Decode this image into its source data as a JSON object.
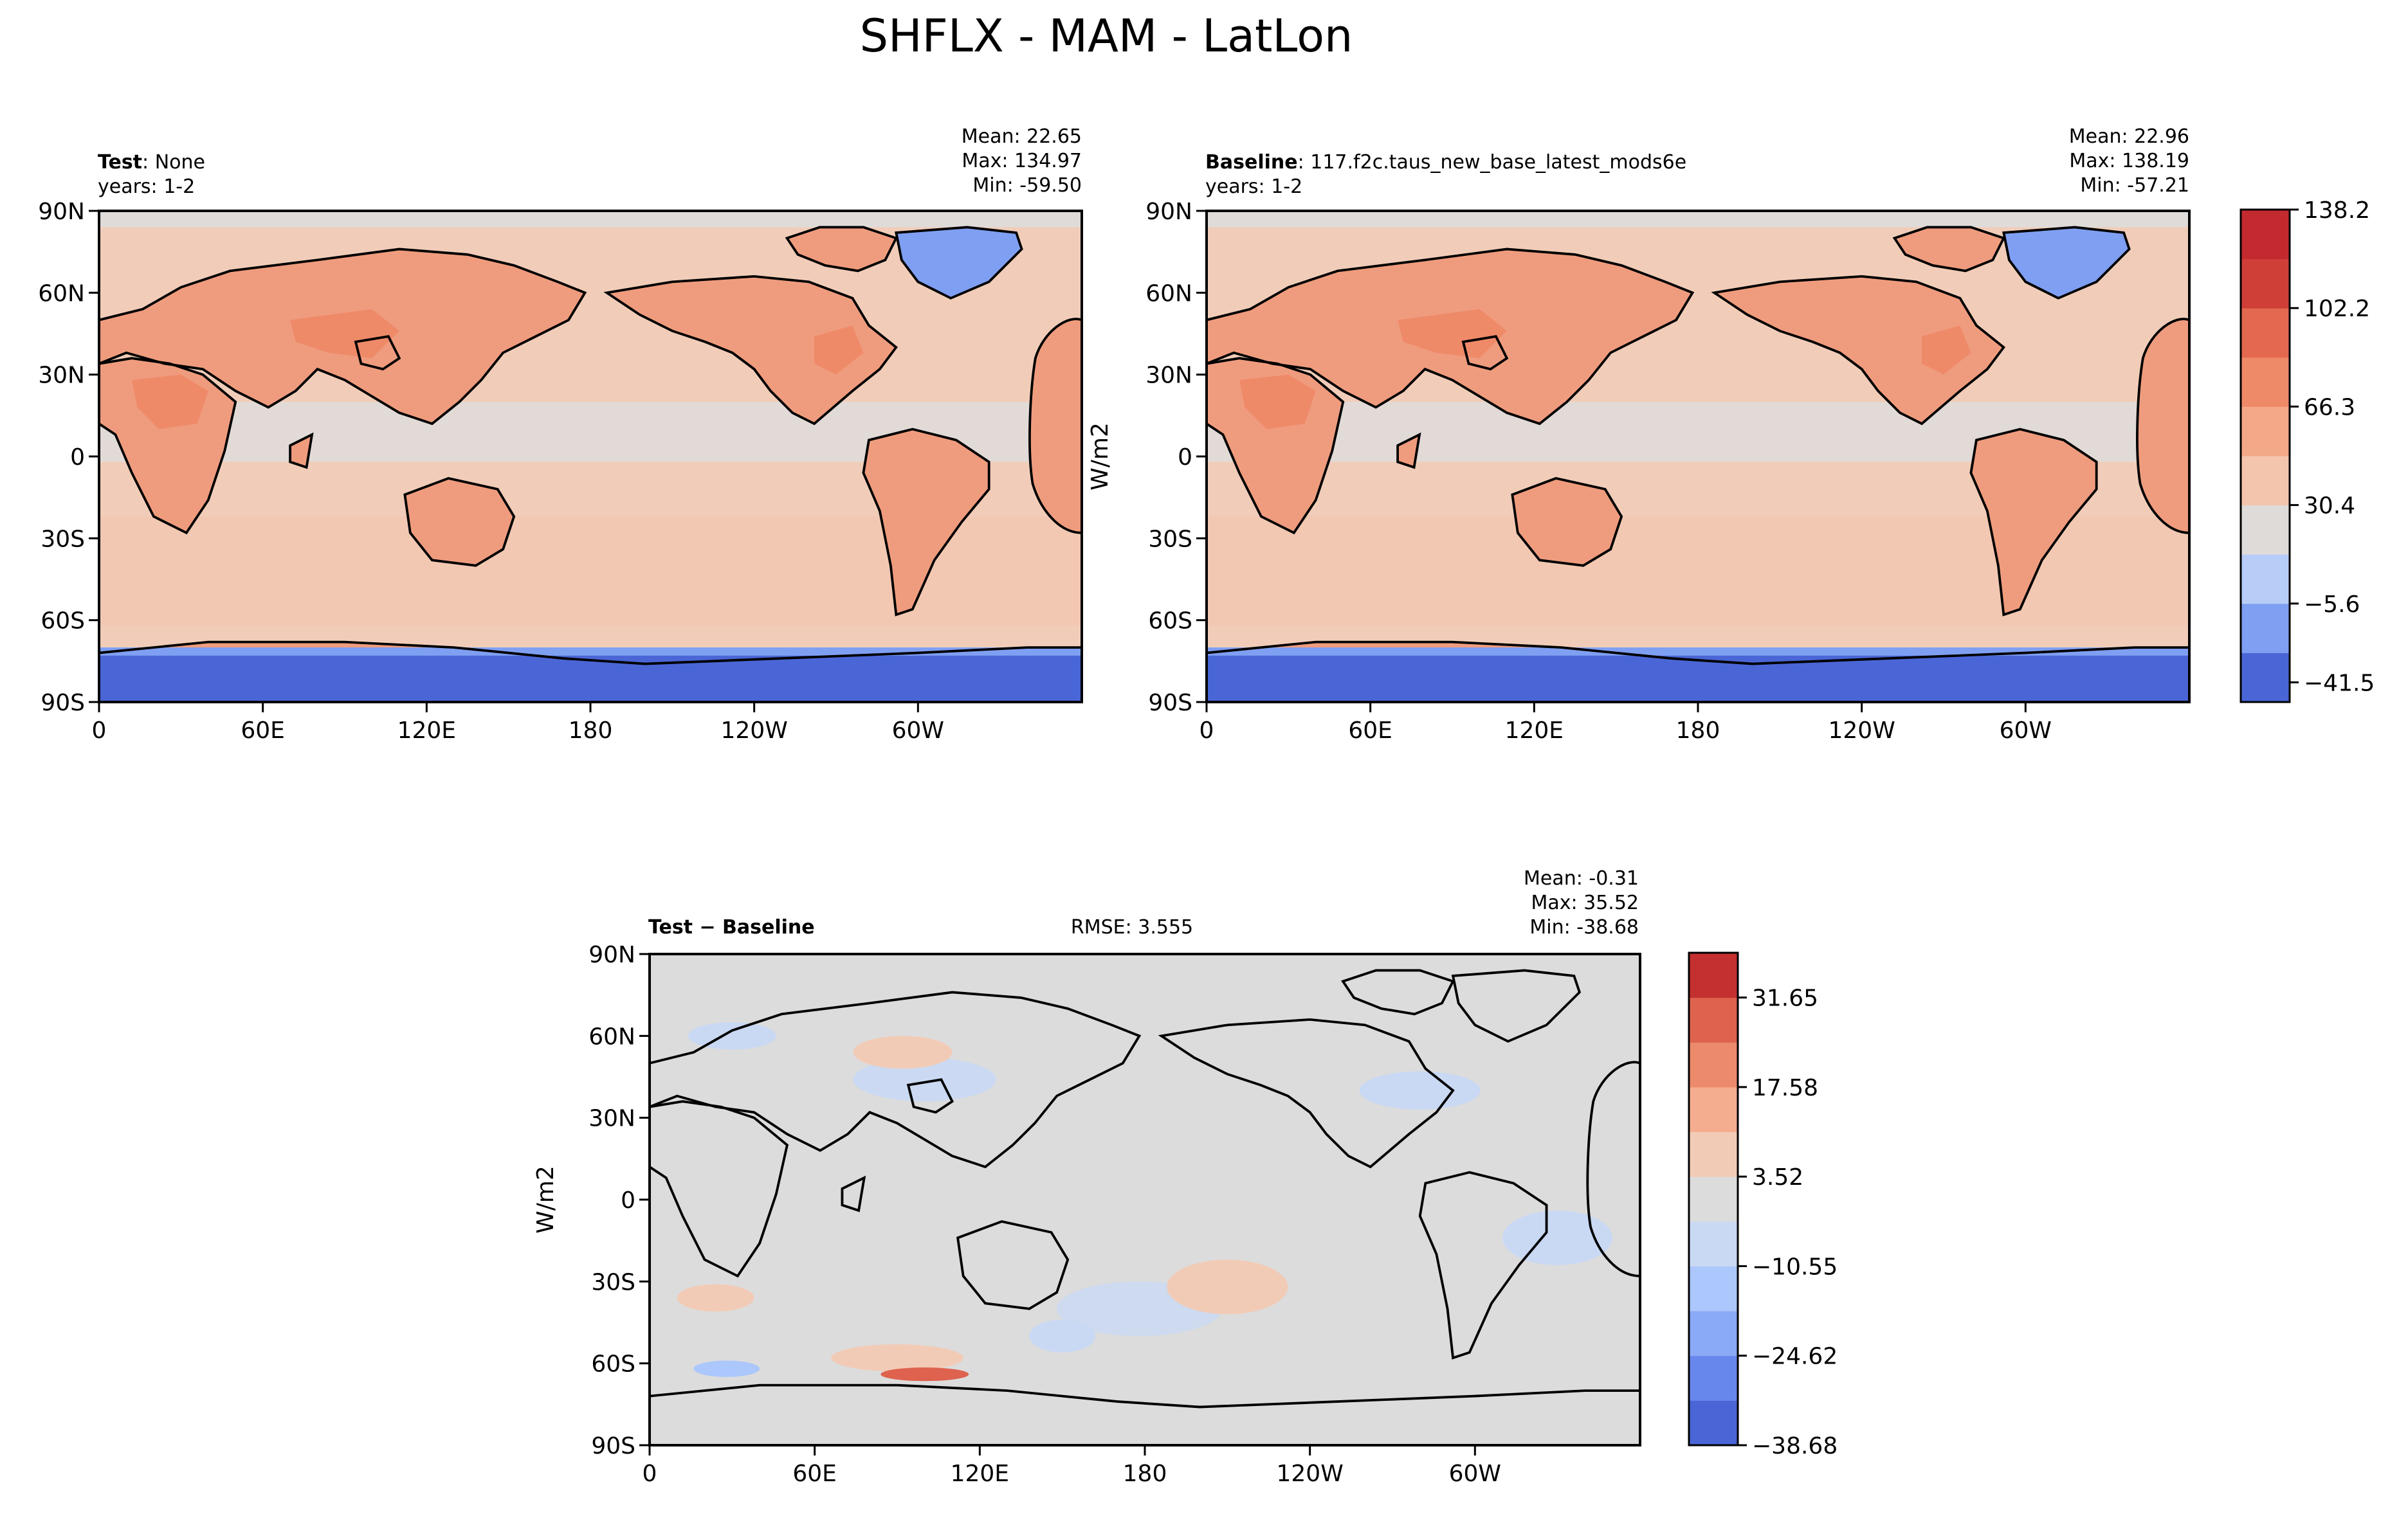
{
  "figure": {
    "title": "SHFLX - MAM - LatLon"
  },
  "colors": {
    "upper_levels": [
      "#4a66d6",
      "#7f9ff2",
      "#b7cdf8",
      "#dfdbd9",
      "#f4c5ad",
      "#f3a888",
      "#ef8a69",
      "#e3684f",
      "#cf3f37",
      "#c32a2f"
    ],
    "diff_levels": [
      "#4a66d6",
      "#6887ec",
      "#8aa9f6",
      "#abc7fb",
      "#c9d9f4",
      "#dcdcdc",
      "#f2cbb7",
      "#f5ad8f",
      "#ec8a6c",
      "#de624e",
      "#c43030"
    ],
    "land_base": "#ef9c7e",
    "ocean_base": "#f1cdb9",
    "cold_region": "#7f9ff2"
  },
  "panels": {
    "test": {
      "title_bold": "Test",
      "title_sep": ": ",
      "title_text": "None",
      "years": "years: 1-2",
      "stats": [
        "Mean: 22.65",
        "Max: 134.97",
        "Min: -59.50"
      ]
    },
    "baseline": {
      "title_bold": "Baseline",
      "title_sep": ": ",
      "title_text": "117.f2c.taus_new_base_latest_mods6e",
      "years": "years: 1-2",
      "stats": [
        "Mean: 22.96",
        "Max: 138.19",
        "Min: -57.21"
      ]
    },
    "diff": {
      "title_bold": "Test − Baseline",
      "rmse": "RMSE: 3.555",
      "stats": [
        "Mean: -0.31",
        "Max: 35.52",
        "Min: -38.68"
      ]
    }
  },
  "axes": {
    "x_ticks": [
      "0",
      "60E",
      "120E",
      "180",
      "120W",
      "60W"
    ],
    "y_ticks": [
      "90N",
      "60N",
      "30N",
      "0",
      "30S",
      "60S",
      "90S"
    ]
  },
  "colorbars": {
    "upper": {
      "label": "W/m2",
      "tick_labels": [
        "138.2",
        "102.2",
        "66.3",
        "30.4",
        "−5.6",
        "−41.5"
      ]
    },
    "diff": {
      "label": "W/m2",
      "tick_labels": [
        "31.65",
        "17.58",
        "3.52",
        "−10.55",
        "−24.62",
        "−38.68"
      ]
    }
  },
  "chart_data": [
    {
      "type": "heatmap",
      "name": "Test",
      "x": [
        "0",
        "60E",
        "120E",
        "180",
        "120W",
        "60W"
      ],
      "y": [
        "90N",
        "60N",
        "30N",
        "0",
        "30S",
        "60S",
        "90S"
      ],
      "mean": 22.65,
      "max": 134.97,
      "min": -59.5,
      "colorbar_label": "W/m2",
      "colorbar_ticks": [
        138.2,
        102.2,
        66.3,
        30.4,
        -5.6,
        -41.5
      ]
    },
    {
      "type": "heatmap",
      "name": "Baseline",
      "x": [
        "0",
        "60E",
        "120E",
        "180",
        "120W",
        "60W"
      ],
      "y": [
        "90N",
        "60N",
        "30N",
        "0",
        "30S",
        "60S",
        "90S"
      ],
      "mean": 22.96,
      "max": 138.19,
      "min": -57.21,
      "colorbar_label": "W/m2",
      "colorbar_ticks": [
        138.2,
        102.2,
        66.3,
        30.4,
        -5.6,
        -41.5
      ]
    },
    {
      "type": "heatmap",
      "name": "Test − Baseline",
      "x": [
        "0",
        "60E",
        "120E",
        "180",
        "120W",
        "60W"
      ],
      "y": [
        "90N",
        "60N",
        "30N",
        "0",
        "30S",
        "60S",
        "90S"
      ],
      "mean": -0.31,
      "max": 35.52,
      "min": -38.68,
      "rmse": 3.555,
      "colorbar_label": "W/m2",
      "colorbar_ticks": [
        31.65,
        17.58,
        3.52,
        -10.55,
        -24.62,
        -38.68
      ]
    }
  ]
}
